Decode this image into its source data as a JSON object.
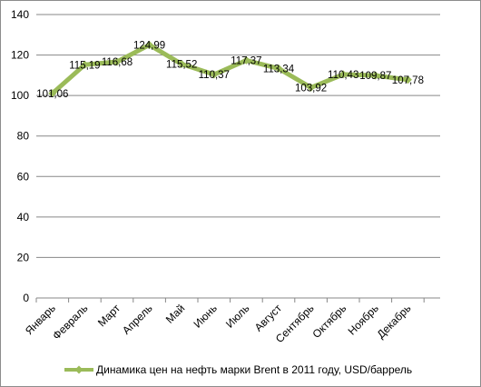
{
  "chart_data": {
    "type": "line",
    "categories": [
      "Январь",
      "Февраль",
      "Март",
      "Апрель",
      "Май",
      "Июнь",
      "Июль",
      "Август",
      "Сентябрь",
      "Октябрь",
      "Ноябрь",
      "Декабрь"
    ],
    "series": [
      {
        "name": "Динамика цен на нефть марки Brent в 2011 году, USD/баррель",
        "values": [
          101.06,
          115.19,
          116.68,
          124.99,
          115.52,
          110.37,
          117.37,
          113.34,
          103.92,
          110.43,
          109.87,
          107.78
        ],
        "labels": [
          "101,06",
          "115,19",
          "116,68",
          "124,99",
          "115,52",
          "110,37",
          "117,37",
          "113,34",
          "103,92",
          "110,43",
          "109,87",
          "107,78"
        ],
        "color": "#9bbb59"
      }
    ],
    "yticks": [
      "0",
      "20",
      "40",
      "60",
      "80",
      "100",
      "120",
      "140"
    ],
    "ylim": [
      0,
      140
    ],
    "grid": true,
    "legend": "bottom"
  }
}
